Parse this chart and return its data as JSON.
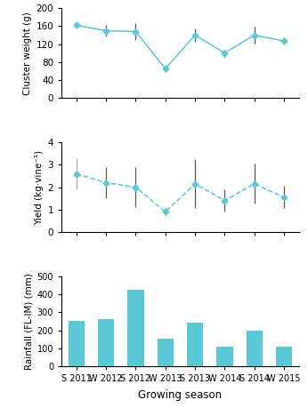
{
  "seasons": [
    "S 2011",
    "W 2012",
    "S 2012",
    "W 2013",
    "S 2013",
    "W 2014",
    "S 2014",
    "W 2015"
  ],
  "cluster_weight": [
    162,
    150,
    148,
    65,
    140,
    100,
    140,
    127
  ],
  "cluster_weight_err": [
    5,
    12,
    18,
    8,
    15,
    10,
    18,
    8
  ],
  "yield_val": [
    2.6,
    2.2,
    2.0,
    0.9,
    2.15,
    1.4,
    2.15,
    1.55
  ],
  "yield_err": [
    0.7,
    0.7,
    0.9,
    0.2,
    1.1,
    0.5,
    0.9,
    0.5
  ],
  "rainfall": [
    255,
    265,
    425,
    155,
    245,
    108,
    200,
    108
  ],
  "line_color": "#5bc8d5",
  "bar_color": "#5bc8d5",
  "cluster_err_colors": [
    "#aaaaaa",
    "#555555",
    "#555555",
    "#aaaaaa",
    "#555555",
    "#aaaaaa",
    "#555555",
    "#aaaaaa"
  ],
  "yield_err_colors": [
    "#aaaaaa",
    "#555555",
    "#555555",
    "#aaaaaa",
    "#555555",
    "#555555",
    "#555555",
    "#555555"
  ],
  "ylabel1": "Cluster weight (g)",
  "ylabel2": "Yield (kg·vine⁻¹)",
  "ylabel3": "Rainfall (FL-IM) (mm)",
  "xlabel": "Growing season",
  "ylim1": [
    0,
    200
  ],
  "ylim2": [
    0,
    4
  ],
  "ylim3": [
    0,
    500
  ],
  "yticks1": [
    0,
    40,
    80,
    120,
    160,
    200
  ],
  "yticks2": [
    0,
    1,
    2,
    3,
    4
  ],
  "yticks3": [
    0,
    100,
    200,
    300,
    400,
    500
  ],
  "marker": "D",
  "markersize": 3.5,
  "linewidth": 1.1,
  "background_color": "#ffffff",
  "linestyle1": "-",
  "linestyle2": "--"
}
